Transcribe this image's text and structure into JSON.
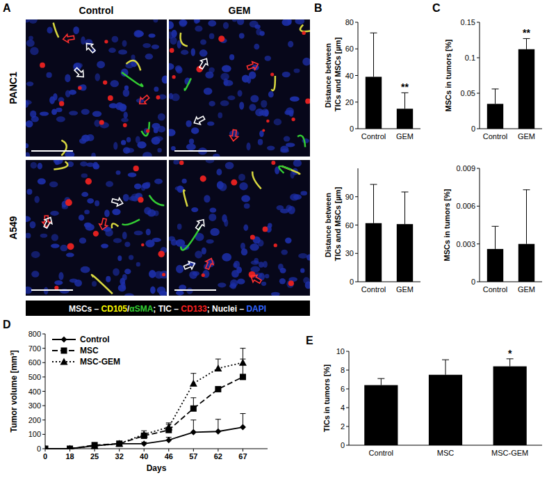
{
  "figure": {
    "panels": [
      "A",
      "B",
      "C",
      "D",
      "E"
    ],
    "images": {
      "columns": [
        "Control",
        "GEM"
      ],
      "rows": [
        "PANC1",
        "A549"
      ],
      "legend": [
        {
          "text": "MSCs – ",
          "color": "#ffffff"
        },
        {
          "text": "CD105",
          "color": "#ffff00"
        },
        {
          "text": "/",
          "color": "#ffffff"
        },
        {
          "text": "αSMA",
          "color": "#33cc33"
        },
        {
          "text": "; TIC – ",
          "color": "#ffffff"
        },
        {
          "text": "CD133",
          "color": "#ff2020"
        },
        {
          "text": "; Nuclei – ",
          "color": "#ffffff"
        },
        {
          "text": "DAPI",
          "color": "#3366ff"
        }
      ]
    }
  },
  "chart_data": [
    {
      "type": "bar",
      "ylabel": "Distance between TICs and MSCs [µm]",
      "categories": [
        "Control",
        "GEM"
      ],
      "values": [
        39,
        15
      ],
      "errors": [
        33,
        12
      ],
      "annotations": [
        {
          "x": "GEM",
          "text": "**"
        }
      ],
      "color": "#000000",
      "ylim": [
        0,
        80
      ],
      "yticks": [
        0,
        20,
        40,
        60,
        80
      ]
    },
    {
      "type": "bar",
      "ylabel": "Distance between TICs and MSCs [µm]",
      "categories": [
        "Control",
        "GEM"
      ],
      "values": [
        62,
        61
      ],
      "errors": [
        41,
        34
      ],
      "color": "#000000",
      "ylim": [
        0,
        120
      ],
      "yticks": [
        0,
        30,
        60,
        90
      ]
    },
    {
      "type": "bar",
      "ylabel": "MSCs in tumors [%]",
      "categories": [
        "Control",
        "GEM"
      ],
      "values": [
        0.035,
        0.112
      ],
      "errors": [
        0.021,
        0.015
      ],
      "annotations": [
        {
          "x": "GEM",
          "text": "**"
        }
      ],
      "color": "#000000",
      "ylim": [
        0,
        0.15
      ],
      "yticks": [
        0,
        0.05,
        0.1,
        0.15
      ]
    },
    {
      "type": "bar",
      "ylabel": "MSCs in tumors [%]",
      "categories": [
        "Control",
        "GEM"
      ],
      "values": [
        0.0026,
        0.003
      ],
      "errors": [
        0.0018,
        0.0043
      ],
      "color": "#000000",
      "ylim": [
        0,
        0.009
      ],
      "yticks": [
        0,
        0.003,
        0.006,
        0.009
      ]
    },
    {
      "type": "line",
      "xlabel": "Days",
      "ylabel": "Tumor volume [mm³]",
      "categories": [
        "0",
        "18",
        "25",
        "32",
        "40",
        "46",
        "57",
        "62",
        "67"
      ],
      "series": [
        {
          "name": "Control",
          "color": "#000000",
          "marker": "diamond",
          "line_style": "solid",
          "values": [
            0,
            0,
            20,
            35,
            35,
            60,
            115,
            120,
            150
          ],
          "errors": [
            0,
            0,
            5,
            5,
            10,
            20,
            85,
            85,
            95
          ]
        },
        {
          "name": "MSC",
          "color": "#000000",
          "marker": "square",
          "line_style": "dashed",
          "values": [
            0,
            0,
            25,
            35,
            90,
            130,
            280,
            415,
            500
          ],
          "errors": [
            0,
            0,
            5,
            5,
            20,
            40,
            75,
            0,
            125
          ]
        },
        {
          "name": "MSC-GEM",
          "color": "#000000",
          "marker": "triangle",
          "line_style": "dotted",
          "values": [
            0,
            0,
            20,
            35,
            100,
            150,
            455,
            560,
            600
          ],
          "errors": [
            0,
            0,
            5,
            5,
            25,
            30,
            70,
            65,
            100
          ]
        }
      ],
      "legend": "top-left",
      "ylim": [
        0,
        800
      ],
      "yticks": [
        0,
        100,
        200,
        300,
        400,
        500,
        600,
        700,
        800
      ]
    },
    {
      "type": "bar",
      "ylabel": "TICs in tumors [%]",
      "categories": [
        "Control",
        "MSC",
        "MSC-GEM"
      ],
      "values": [
        6.4,
        7.5,
        8.4
      ],
      "errors": [
        0.7,
        1.6,
        0.8
      ],
      "annotations": [
        {
          "x": "MSC-GEM",
          "text": "*"
        }
      ],
      "color": "#000000",
      "ylim": [
        0,
        10
      ],
      "yticks": [
        0,
        2,
        4,
        6,
        8,
        10
      ]
    }
  ]
}
